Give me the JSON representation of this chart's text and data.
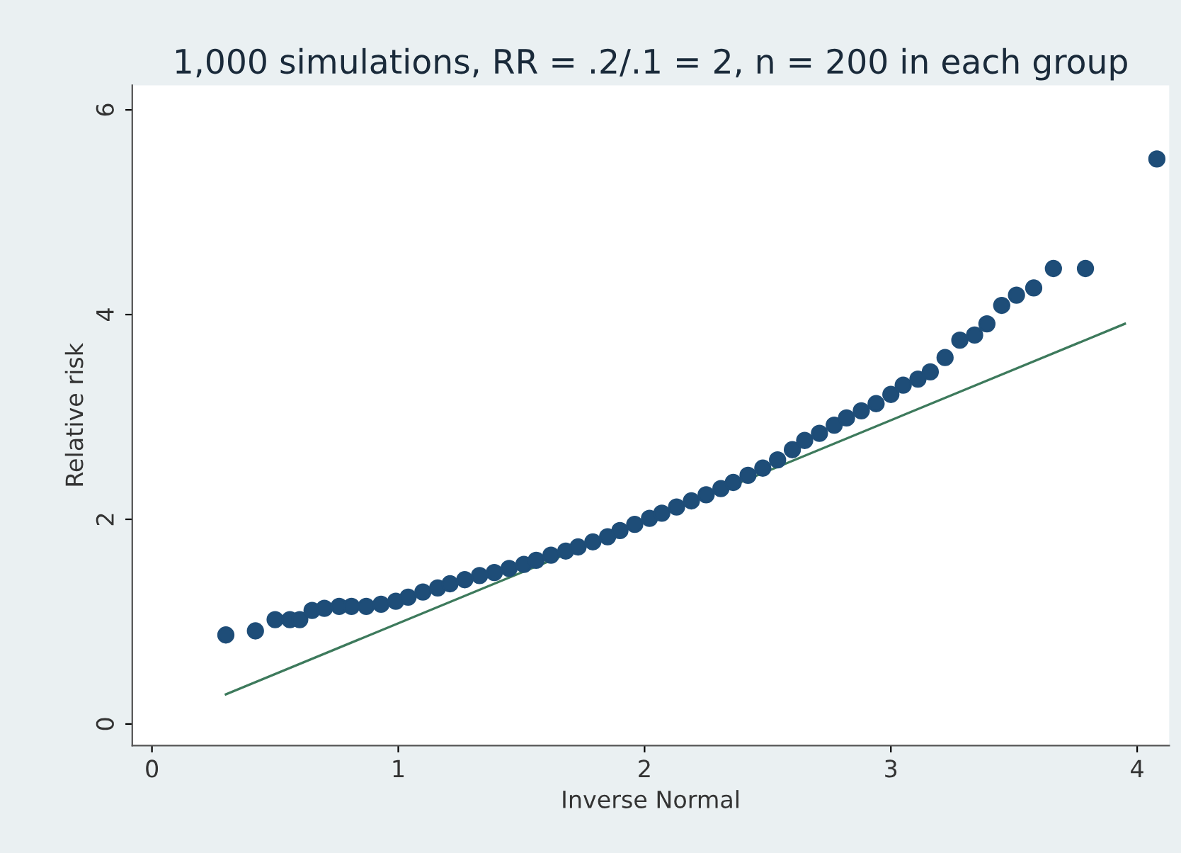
{
  "chart_data": {
    "type": "scatter",
    "title": "1,000 simulations, RR = .2/.1 = 2, n = 200 in each group",
    "xlabel": "Inverse Normal",
    "ylabel": "Relative risk",
    "xlim": [
      -0.08,
      4.13
    ],
    "ylim": [
      -0.21,
      6.24
    ],
    "xticks": [
      0,
      1,
      2,
      3,
      4
    ],
    "yticks": [
      0,
      2,
      4,
      6
    ],
    "grid": false,
    "marker": "circle",
    "series": [
      {
        "color": "#1e4d78",
        "x": [
          0.3,
          0.42,
          0.5,
          0.56,
          0.6,
          0.65,
          0.7,
          0.76,
          0.81,
          0.87,
          0.93,
          0.99,
          1.04,
          1.1,
          1.16,
          1.21,
          1.27,
          1.33,
          1.39,
          1.45,
          1.51,
          1.56,
          1.62,
          1.68,
          1.73,
          1.79,
          1.85,
          1.9,
          1.96,
          2.02,
          2.07,
          2.13,
          2.19,
          2.25,
          2.31,
          2.36,
          2.42,
          2.48,
          2.54,
          2.6,
          2.65,
          2.71,
          2.77,
          2.82,
          2.88,
          2.94,
          3.0,
          3.05,
          3.11,
          3.16,
          3.22,
          3.28,
          3.34,
          3.39,
          3.45,
          3.51,
          3.58,
          3.66,
          3.79,
          4.08
        ],
        "values": [
          0.87,
          0.91,
          1.02,
          1.02,
          1.02,
          1.11,
          1.13,
          1.15,
          1.15,
          1.15,
          1.17,
          1.2,
          1.24,
          1.29,
          1.33,
          1.37,
          1.41,
          1.45,
          1.48,
          1.52,
          1.56,
          1.6,
          1.65,
          1.69,
          1.73,
          1.78,
          1.83,
          1.89,
          1.95,
          2.01,
          2.06,
          2.12,
          2.18,
          2.24,
          2.3,
          2.36,
          2.43,
          2.5,
          2.58,
          2.68,
          2.77,
          2.84,
          2.92,
          2.99,
          3.06,
          3.13,
          3.22,
          3.31,
          3.37,
          3.44,
          3.58,
          3.75,
          3.8,
          3.91,
          4.09,
          4.19,
          4.26,
          4.45,
          4.45,
          5.52
        ]
      },
      {
        "type": "line",
        "color": "#3d7a5c",
        "marker": "none",
        "line_style": "solid",
        "x": [
          0.3,
          3.95
        ],
        "values": [
          0.29,
          3.91
        ]
      }
    ]
  }
}
